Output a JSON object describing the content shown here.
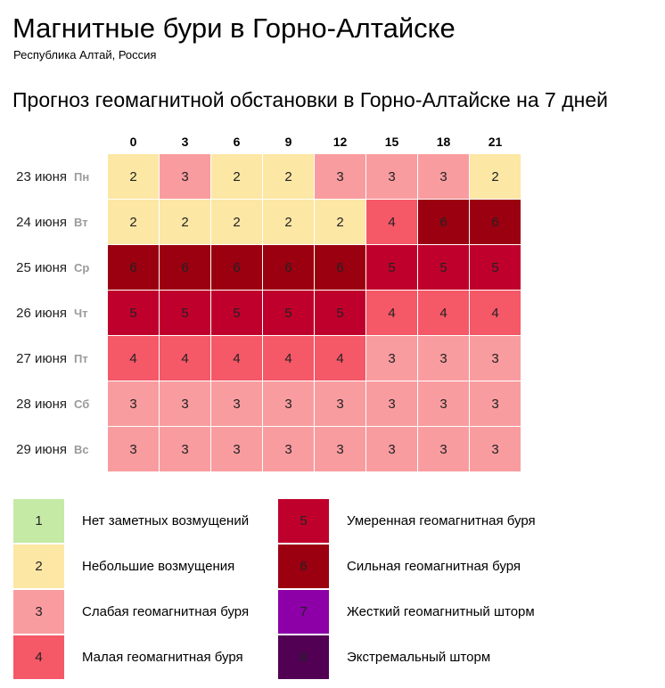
{
  "page": {
    "title": "Магнитные бури в Горно-Алтайске",
    "subtitle": "Республика Алтай, Россия",
    "heading": "Прогноз геомагнитной обстановки в Горно-Алтайске на 7 дней"
  },
  "chart_data": {
    "type": "heatmap",
    "x": [
      "0",
      "3",
      "6",
      "9",
      "12",
      "15",
      "18",
      "21"
    ],
    "rows": [
      {
        "date": "23 июня",
        "weekday": "Пн",
        "values": [
          2,
          3,
          2,
          2,
          3,
          3,
          3,
          2
        ]
      },
      {
        "date": "24 июня",
        "weekday": "Вт",
        "values": [
          2,
          2,
          2,
          2,
          2,
          4,
          6,
          6
        ]
      },
      {
        "date": "25 июня",
        "weekday": "Ср",
        "values": [
          6,
          6,
          6,
          6,
          6,
          5,
          5,
          5
        ]
      },
      {
        "date": "26 июня",
        "weekday": "Чт",
        "values": [
          5,
          5,
          5,
          5,
          5,
          4,
          4,
          4
        ]
      },
      {
        "date": "27 июня",
        "weekday": "Пт",
        "values": [
          4,
          4,
          4,
          4,
          4,
          3,
          3,
          3
        ]
      },
      {
        "date": "28 июня",
        "weekday": "Сб",
        "values": [
          3,
          3,
          3,
          3,
          3,
          3,
          3,
          3
        ]
      },
      {
        "date": "29 июня",
        "weekday": "Вс",
        "values": [
          3,
          3,
          3,
          3,
          3,
          3,
          3,
          3
        ]
      }
    ],
    "colors": {
      "1": "#c5eaa6",
      "2": "#fce7a4",
      "3": "#f99ca0",
      "4": "#f55867",
      "5": "#c0002c",
      "6": "#9b0010",
      "7": "#8d00a8",
      "8": "#510054"
    },
    "grid": false
  },
  "legend": [
    {
      "level": "1",
      "label": "Нет заметных возмущений"
    },
    {
      "level": "2",
      "label": "Небольшие возмущения"
    },
    {
      "level": "3",
      "label": "Слабая геомагнитная буря"
    },
    {
      "level": "4",
      "label": "Малая геомагнитная буря"
    },
    {
      "level": "5",
      "label": "Умеренная геомагнитная буря"
    },
    {
      "level": "6",
      "label": "Сильная геомагнитная буря"
    },
    {
      "level": "7",
      "label": "Жесткий геомагнитный шторм"
    },
    {
      "level": "8",
      "label": "Экстремальный шторм"
    }
  ]
}
